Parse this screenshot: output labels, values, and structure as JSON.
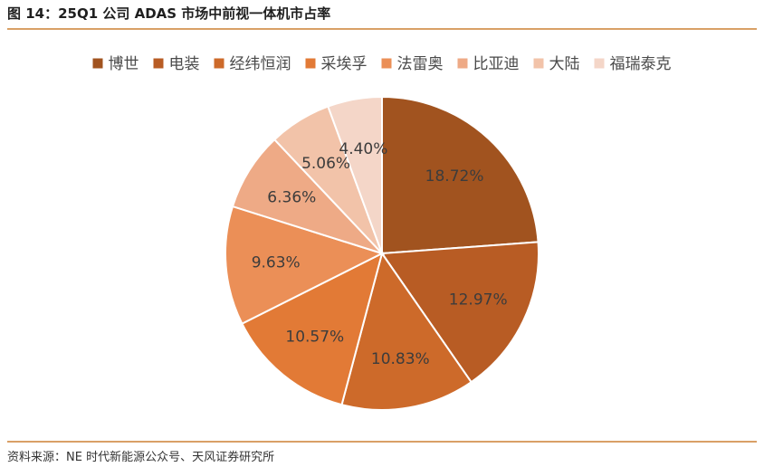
{
  "figure_title": "图 14：25Q1 公司 ADAS 市场中前视一体机市占率",
  "source_note": "资料来源：NE 时代新能源公众号、天风证券研究所",
  "colors": {
    "rule": "#d9a066",
    "slice_border": "#ffffff"
  },
  "chart_data": {
    "type": "pie",
    "title": "",
    "legend_position": "top",
    "categories": [
      "博世",
      "电装",
      "经纬恒润",
      "采埃孚",
      "法雷奥",
      "比亚迪",
      "大陆",
      "福瑞泰克"
    ],
    "values": [
      18.72,
      12.97,
      10.83,
      10.57,
      9.63,
      6.36,
      5.06,
      4.4
    ],
    "data_labels": [
      "18.72%",
      "12.97%",
      "10.83%",
      "10.57%",
      "9.63%",
      "6.36%",
      "5.06%",
      "4.40%"
    ],
    "colors": [
      "#a1531f",
      "#b85c24",
      "#cd6a2a",
      "#e27a36",
      "#eb8f57",
      "#eeaa86",
      "#f2c3a9",
      "#f4d6c8"
    ]
  }
}
